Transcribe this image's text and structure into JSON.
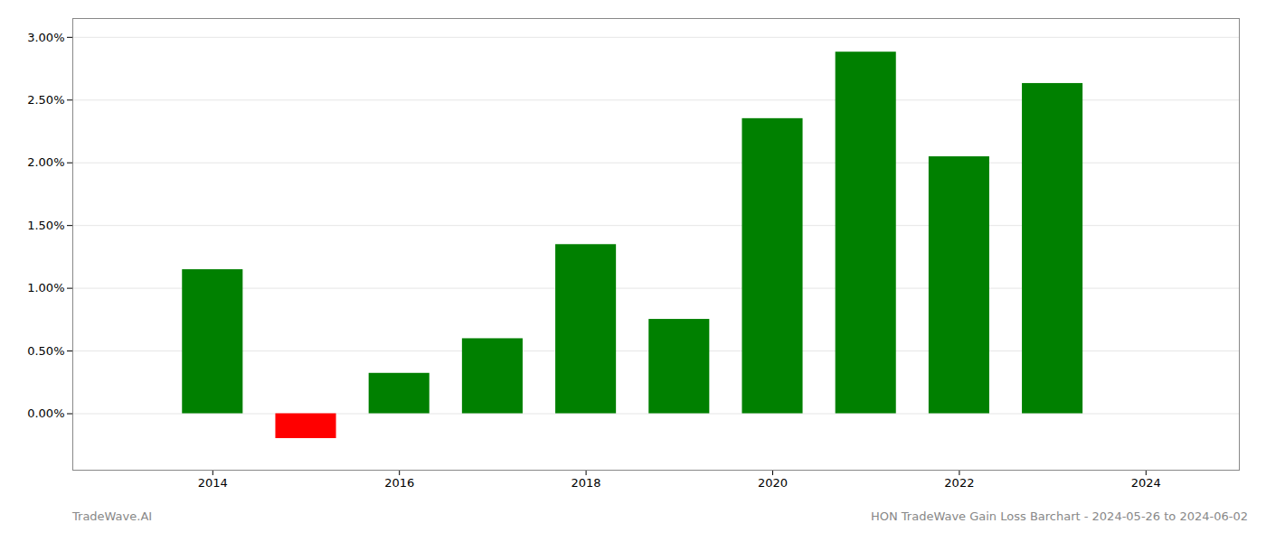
{
  "chart_data": {
    "type": "bar",
    "title": "HON TradeWave Gain Loss Barchart - 2024-05-26 to 2024-06-02",
    "annotations": [
      "TradeWave.AI"
    ],
    "x": [
      2014,
      2015,
      2016,
      2017,
      2018,
      2019,
      2020,
      2021,
      2022,
      2023
    ],
    "values": [
      0.01148,
      -0.00198,
      0.00322,
      0.00598,
      0.01348,
      0.00752,
      0.02352,
      0.02882,
      0.02048,
      0.02632
    ],
    "colors": [
      "#008000",
      "#ff0000",
      "#008000",
      "#008000",
      "#008000",
      "#008000",
      "#008000",
      "#008000",
      "#008000",
      "#008000"
    ],
    "xlim": [
      2012.5,
      2025.0
    ],
    "xticks": [
      2014,
      2016,
      2018,
      2020,
      2022,
      2024
    ],
    "ylim": [
      -0.0045,
      0.0315
    ],
    "yticks": [
      {
        "value": 0,
        "label": "0.00%"
      },
      {
        "value": 0.005,
        "label": "0.50%"
      },
      {
        "value": 0.01,
        "label": "1.00%"
      },
      {
        "value": 0.015,
        "label": "1.50%"
      },
      {
        "value": 0.02,
        "label": "2.00%"
      },
      {
        "value": 0.025,
        "label": "2.50%"
      },
      {
        "value": 0.03,
        "label": "3.00%"
      }
    ],
    "grid": true
  }
}
